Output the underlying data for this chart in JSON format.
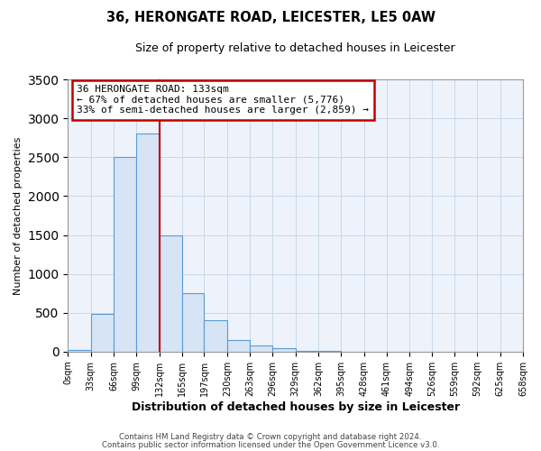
{
  "title": "36, HERONGATE ROAD, LEICESTER, LE5 0AW",
  "subtitle": "Size of property relative to detached houses in Leicester",
  "xlabel": "Distribution of detached houses by size in Leicester",
  "ylabel": "Number of detached properties",
  "bar_edges": [
    0,
    33,
    66,
    99,
    132,
    165,
    197,
    230,
    263,
    296,
    329,
    362,
    395,
    428,
    461,
    494,
    526,
    559,
    592,
    625,
    658
  ],
  "bar_values": [
    20,
    480,
    2500,
    2800,
    1500,
    750,
    400,
    150,
    80,
    50,
    15,
    5,
    2,
    0,
    0,
    0,
    0,
    0,
    0,
    0
  ],
  "bar_color": "#d6e4f5",
  "bar_edge_color": "#5b9bd5",
  "property_line_x": 132,
  "property_line_color": "#c00000",
  "ylim": [
    0,
    3500
  ],
  "xlim": [
    0,
    658
  ],
  "annotation_text": "36 HERONGATE ROAD: 133sqm\n← 67% of detached houses are smaller (5,776)\n33% of semi-detached houses are larger (2,859) →",
  "annotation_box_color": "#ffffff",
  "annotation_box_edge_color": "#c00000",
  "footer1": "Contains HM Land Registry data © Crown copyright and database right 2024.",
  "footer2": "Contains public sector information licensed under the Open Government Licence v3.0.",
  "tick_labels": [
    "0sqm",
    "33sqm",
    "66sqm",
    "99sqm",
    "132sqm",
    "165sqm",
    "197sqm",
    "230sqm",
    "263sqm",
    "296sqm",
    "329sqm",
    "362sqm",
    "395sqm",
    "428sqm",
    "461sqm",
    "494sqm",
    "526sqm",
    "559sqm",
    "592sqm",
    "625sqm",
    "658sqm"
  ],
  "grid_color": "#c8d8e8",
  "background_color": "#ffffff",
  "plot_bg_color": "#eef3fb"
}
